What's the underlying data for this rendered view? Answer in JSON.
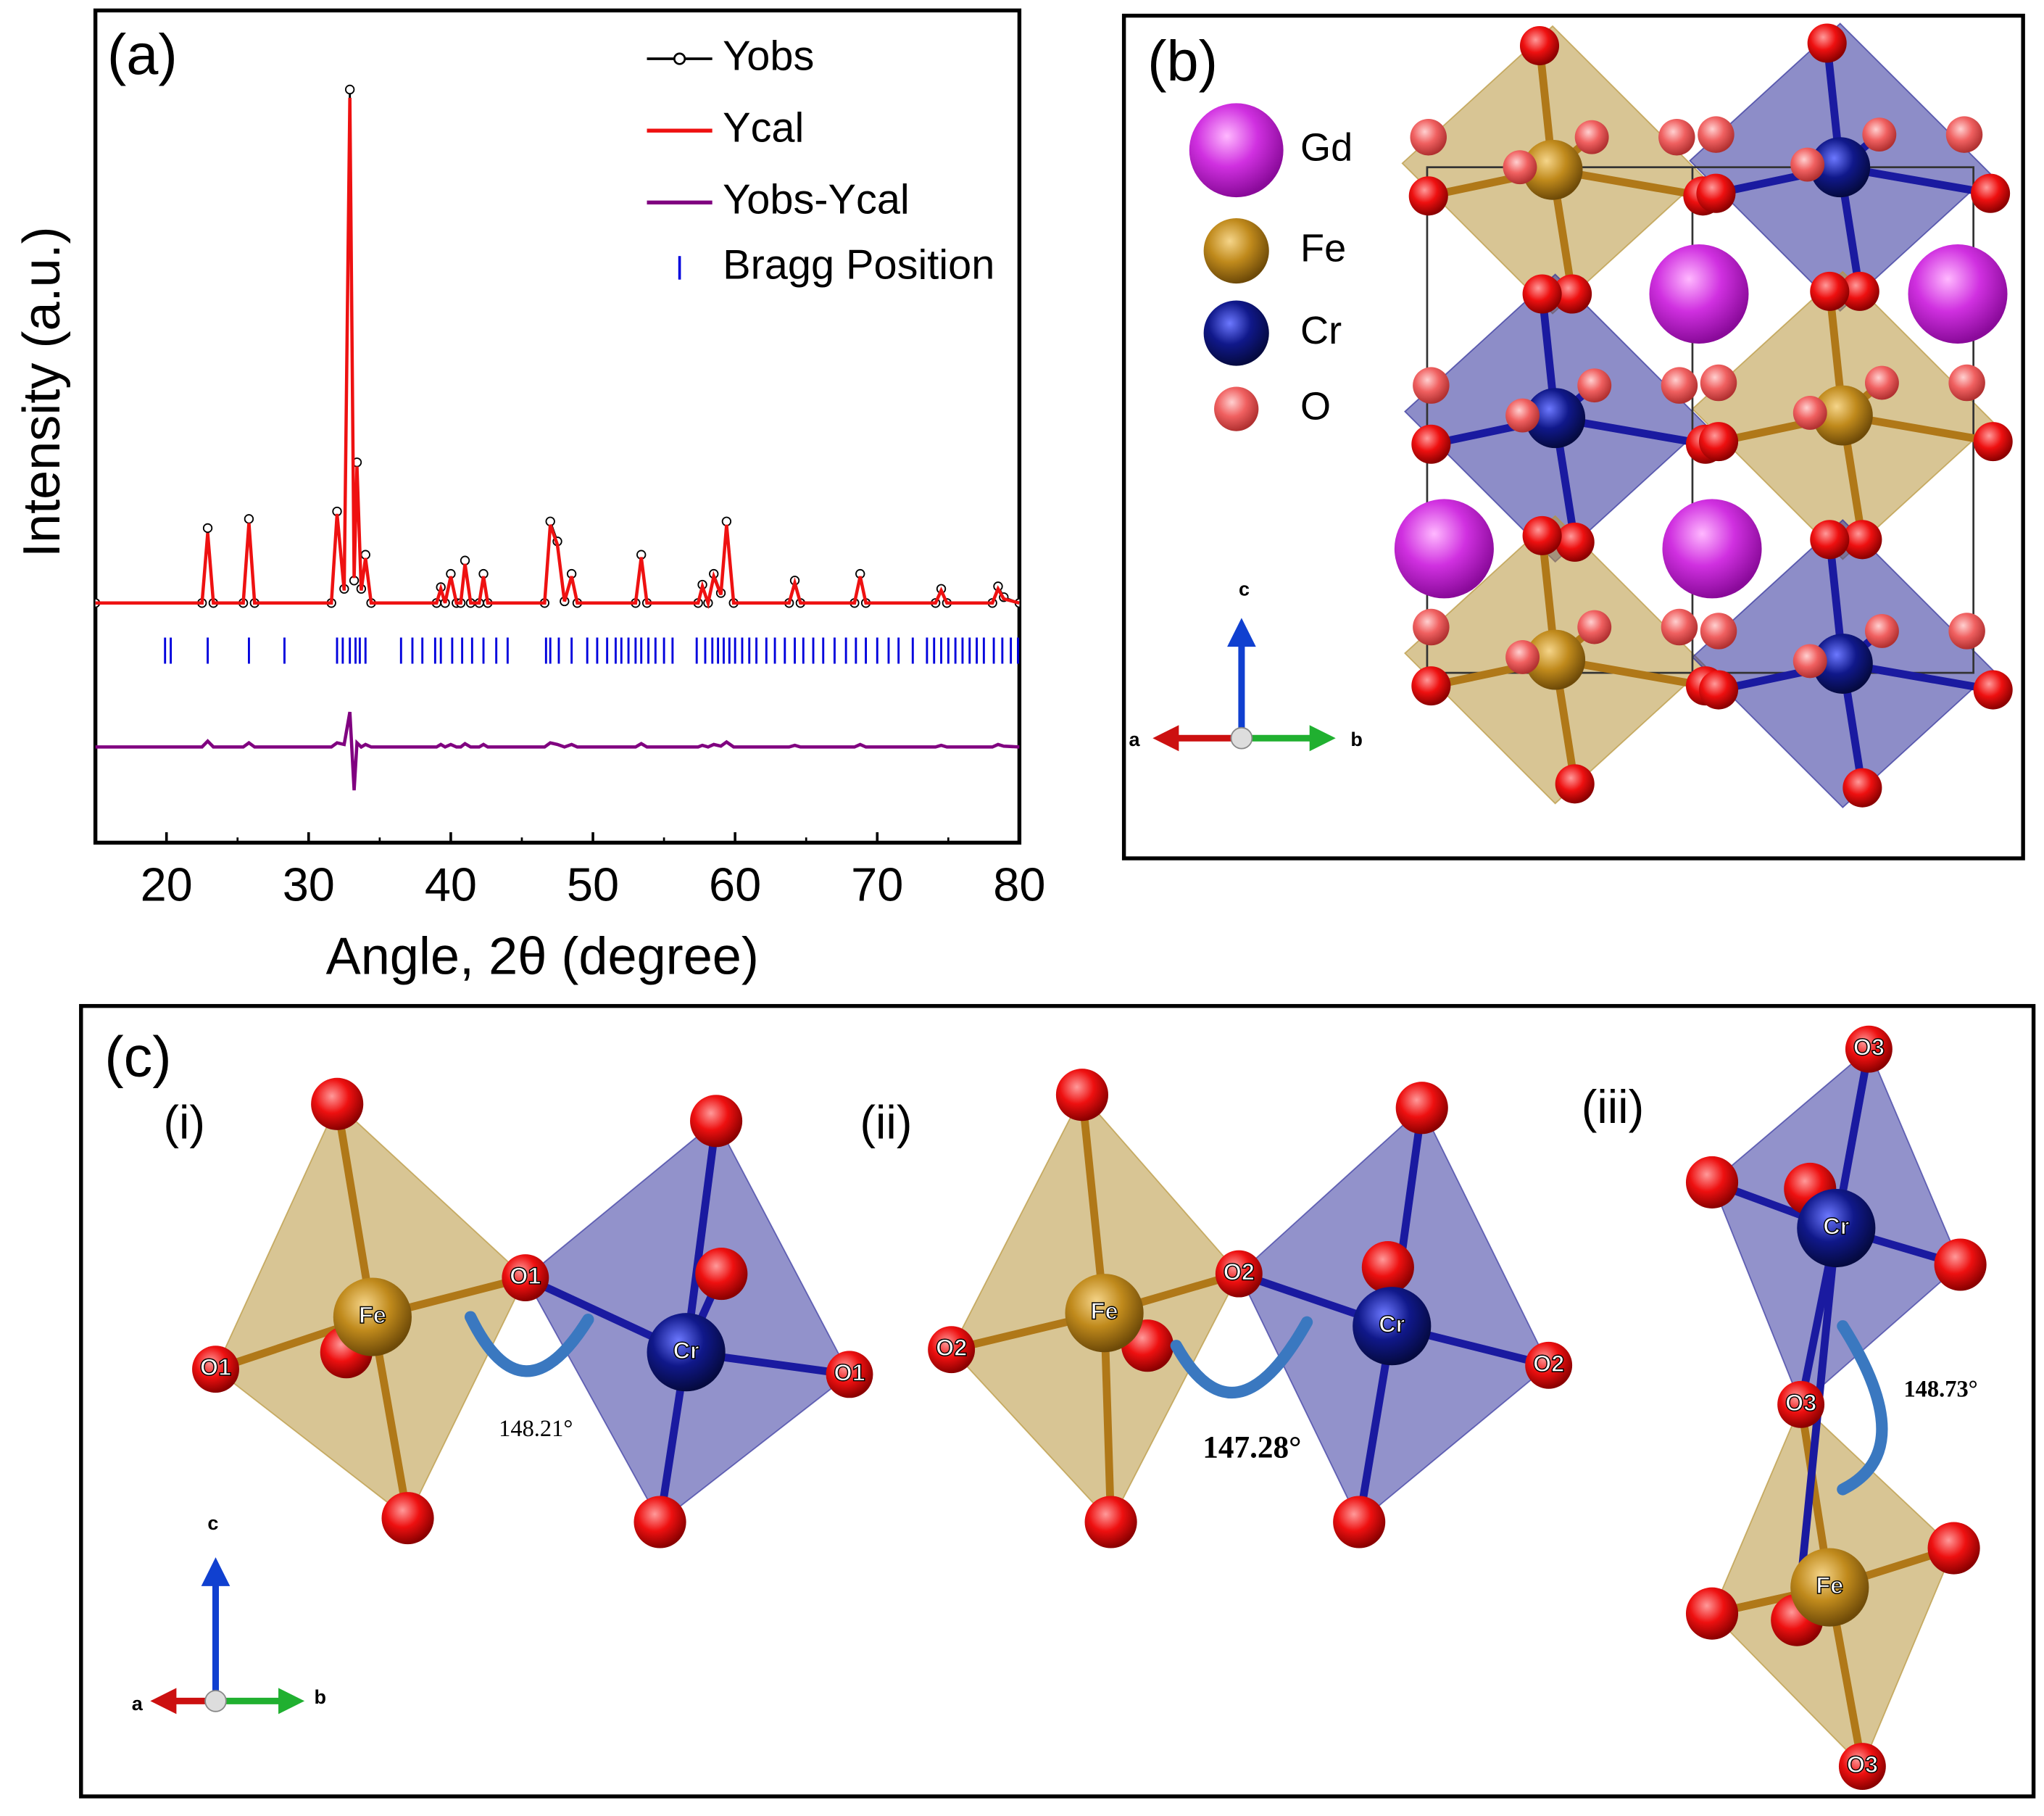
{
  "chart_data": {
    "type": "line",
    "title": "(a)",
    "xlabel": "Angle, 2θ (degree)",
    "ylabel": "Intensity (a.u.)",
    "xlim": [
      15,
      80
    ],
    "xticks": [
      20,
      30,
      40,
      50,
      60,
      70,
      80
    ],
    "ylim": [
      0,
      100
    ],
    "legend": "upper right",
    "x": [
      15,
      22.5,
      22.9,
      23.3,
      25.4,
      25.8,
      26.2,
      31.6,
      32.0,
      32.5,
      32.9,
      33.2,
      33.4,
      33.7,
      34.0,
      34.4,
      39.0,
      39.3,
      39.6,
      40.0,
      40.4,
      40.7,
      41.0,
      41.4,
      42.0,
      42.3,
      42.6,
      46.6,
      47.0,
      47.5,
      48.0,
      48.5,
      48.9,
      53.0,
      53.4,
      53.8,
      57.4,
      57.7,
      58.1,
      58.5,
      59.0,
      59.4,
      59.9,
      63.8,
      64.2,
      64.6,
      68.4,
      68.8,
      69.2,
      74.1,
      74.5,
      74.9,
      78.1,
      78.5,
      78.9,
      80
    ],
    "series": [
      {
        "name": "Yobs",
        "color": "#000000",
        "markers": true,
        "values": [
          28.8,
          28.8,
          37.8,
          28.8,
          28.8,
          38.9,
          28.8,
          28.8,
          39.8,
          30.5,
          90.5,
          31.5,
          45.7,
          30.5,
          34.6,
          28.8,
          28.8,
          30.7,
          28.8,
          32.3,
          28.8,
          28.8,
          33.9,
          28.8,
          28.8,
          32.3,
          28.8,
          28.8,
          38.6,
          36.2,
          29.0,
          32.3,
          28.8,
          28.8,
          34.6,
          28.8,
          28.8,
          31.0,
          28.8,
          32.3,
          30.0,
          38.6,
          28.8,
          28.8,
          31.5,
          28.8,
          28.8,
          32.3,
          28.8,
          28.8,
          30.5,
          28.8,
          28.8,
          30.8,
          29.5,
          28.8
        ]
      },
      {
        "name": "Ycal",
        "color": "#ee1111",
        "markers": false,
        "values": [
          28.8,
          28.8,
          37.2,
          28.8,
          28.8,
          38.4,
          28.8,
          28.8,
          39.5,
          30.3,
          89.5,
          31.8,
          45.2,
          30.3,
          34.2,
          28.8,
          28.8,
          30.5,
          28.8,
          32.0,
          28.8,
          28.8,
          33.5,
          28.8,
          28.8,
          32.0,
          28.8,
          28.8,
          38.2,
          35.8,
          29.0,
          32.0,
          28.8,
          28.8,
          34.3,
          28.8,
          28.8,
          30.8,
          28.8,
          32.0,
          29.8,
          38.2,
          28.8,
          28.8,
          31.2,
          28.8,
          28.8,
          32.0,
          28.8,
          28.8,
          30.3,
          28.8,
          28.8,
          30.5,
          29.3,
          28.8
        ]
      },
      {
        "name": "Yobs-Ycal",
        "color": "#800080",
        "markers": false,
        "values": [
          11.5,
          11.5,
          12.2,
          11.5,
          11.5,
          12.0,
          11.5,
          11.5,
          12.0,
          11.8,
          15.7,
          6.3,
          12.0,
          11.5,
          11.8,
          11.5,
          11.5,
          11.8,
          11.5,
          11.8,
          11.5,
          11.5,
          11.9,
          11.5,
          11.5,
          11.8,
          11.5,
          11.5,
          12.0,
          11.8,
          11.5,
          11.8,
          11.5,
          11.5,
          11.9,
          11.5,
          11.5,
          11.7,
          11.5,
          11.8,
          11.6,
          12.1,
          11.5,
          11.5,
          11.7,
          11.5,
          11.5,
          11.8,
          11.5,
          11.5,
          11.7,
          11.5,
          11.5,
          11.8,
          11.6,
          11.5
        ]
      },
      {
        "name": "Bragg Position",
        "color": "#0000dd",
        "x": [
          19.9,
          20.3,
          22.9,
          25.8,
          28.3,
          32.0,
          32.4,
          32.9,
          33.3,
          33.6,
          34.0,
          36.5,
          37.3,
          38.0,
          38.9,
          39.3,
          40.1,
          40.8,
          41.5,
          42.3,
          43.2,
          44.0,
          46.7,
          47.0,
          47.6,
          48.5,
          49.6,
          50.3,
          51.0,
          51.6,
          52.0,
          52.5,
          53.0,
          53.4,
          53.9,
          54.4,
          55.0,
          55.6,
          57.3,
          57.9,
          58.4,
          58.8,
          59.2,
          59.6,
          60.0,
          60.5,
          61.0,
          61.5,
          62.2,
          62.8,
          63.5,
          64.2,
          64.8,
          65.5,
          66.2,
          67.0,
          67.8,
          68.5,
          69.2,
          70.0,
          70.8,
          71.5,
          72.5,
          73.5,
          74.0,
          74.5,
          75.0,
          75.5,
          76.0,
          76.5,
          77.0,
          77.5,
          78.2,
          78.8,
          79.4,
          79.9
        ]
      }
    ]
  },
  "panel_b": {
    "label": "(b)",
    "legend": [
      "Gd",
      "Fe",
      "Cr",
      "O"
    ],
    "axes": [
      "c",
      "a",
      "b"
    ]
  },
  "panel_c": {
    "label": "(c)",
    "axes": [
      "c",
      "a",
      "b"
    ],
    "subpanels": [
      {
        "label": "(i)",
        "atoms": [
          "Fe",
          "Cr",
          "O1",
          "O1",
          "O1"
        ],
        "angle": "148.21°"
      },
      {
        "label": "(ii)",
        "atoms": [
          "Fe",
          "Cr",
          "O2",
          "O2",
          "O2"
        ],
        "angle": "147.28°"
      },
      {
        "label": "(iii)",
        "atoms": [
          "Cr",
          "Fe",
          "O3",
          "O3",
          "O3"
        ],
        "angle": "148.73°"
      }
    ]
  }
}
